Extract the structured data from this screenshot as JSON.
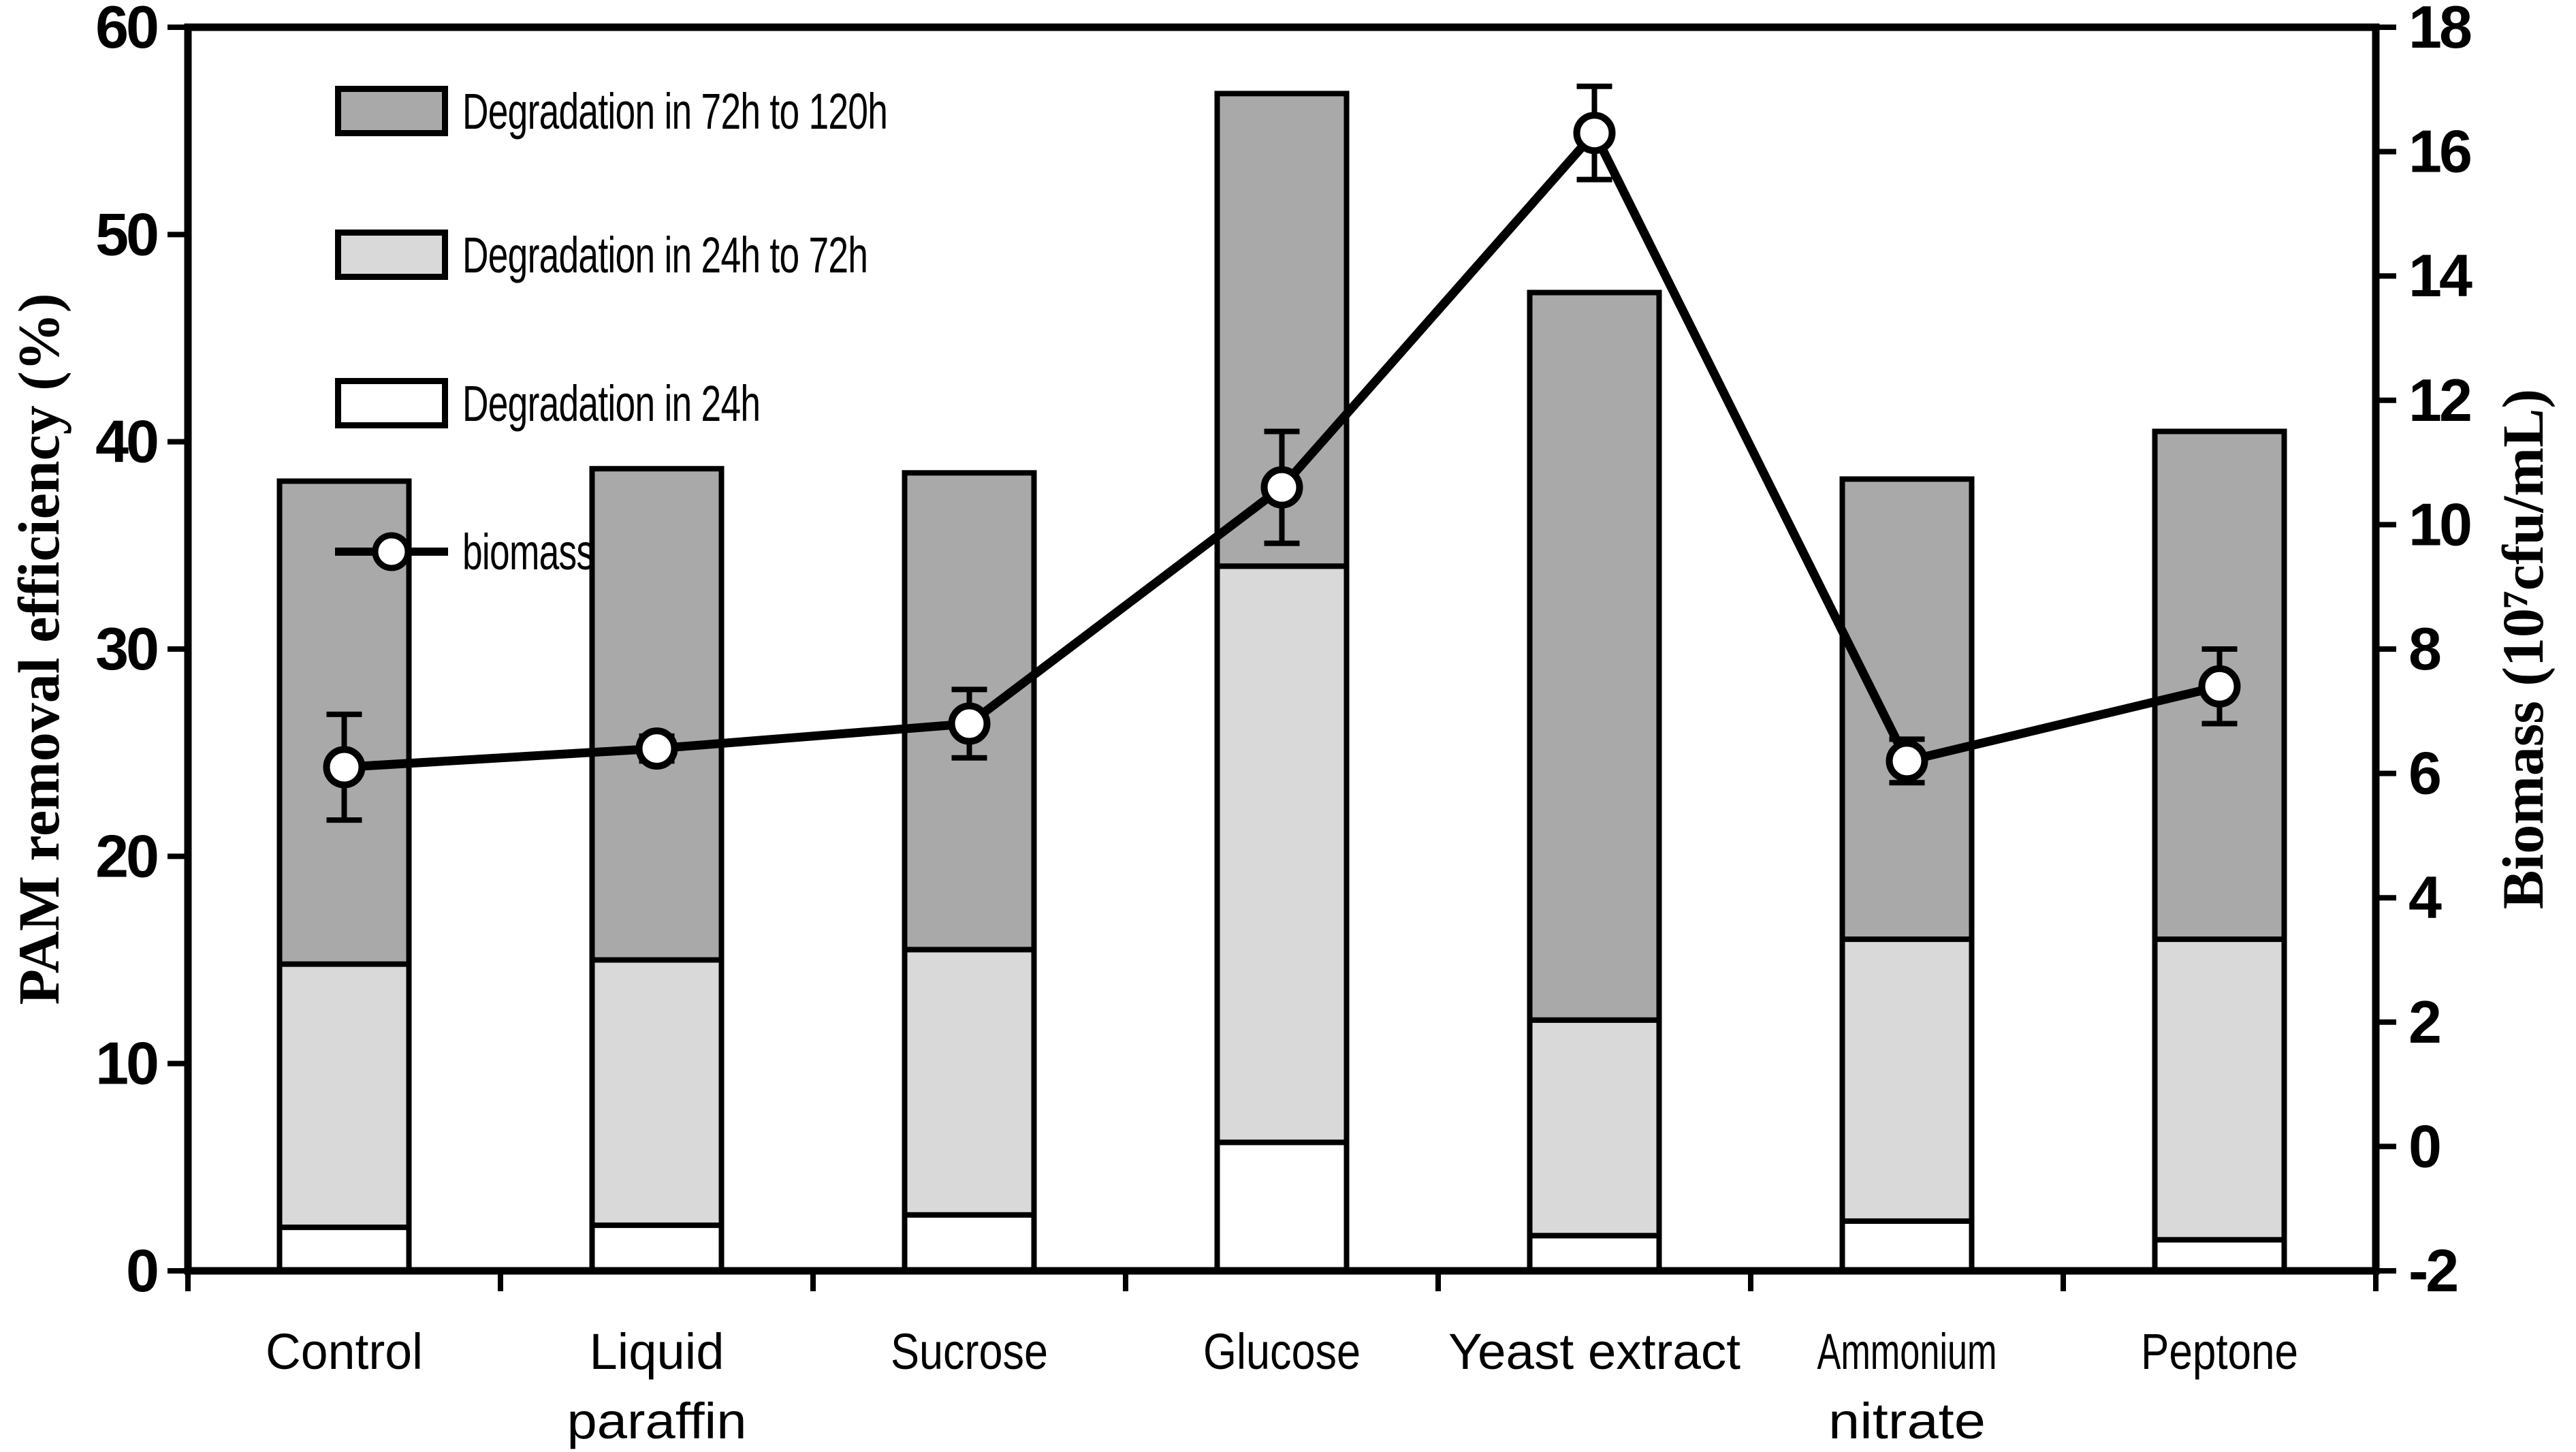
{
  "chart_data": {
    "type": "composite-stacked-bar-line",
    "categories": [
      "Control",
      "Liquid\nparaffin",
      "Sucrose",
      "Glucose",
      "Yeast extract",
      "Ammonium\nnitrate",
      "Peptone"
    ],
    "bar_series": [
      {
        "name": "Degradation in 24h",
        "color": "#ffffff",
        "values": [
          2.1,
          2.2,
          2.7,
          6.2,
          1.7,
          2.4,
          1.5
        ]
      },
      {
        "name": "Degradation in 24h to 72h",
        "color": "#d9d9d9",
        "values": [
          12.7,
          12.8,
          12.8,
          27.8,
          10.4,
          13.6,
          14.5
        ]
      },
      {
        "name": "Degradation in 72h to 120h",
        "color": "#a9a9a9",
        "values": [
          23.3,
          23.7,
          23.0,
          22.8,
          35.1,
          22.2,
          24.5
        ]
      }
    ],
    "bar_totals": [
      38.1,
      38.7,
      38.5,
      56.8,
      47.2,
      38.2,
      40.5
    ],
    "line_series": {
      "name": "biomass",
      "axis": "right",
      "values": [
        6.1,
        6.4,
        6.8,
        10.6,
        16.3,
        6.2,
        7.4
      ],
      "errors": [
        0.85,
        0.2,
        0.55,
        0.9,
        0.75,
        0.35,
        0.6
      ],
      "marker": "open-circle",
      "color": "#000000"
    },
    "left_axis": {
      "label": "PAM removal efficiency (%)",
      "min": 0,
      "max": 60,
      "step": 10
    },
    "right_axis": {
      "label": "Biomass (10⁷cfu/mL)",
      "min": -2,
      "max": 18,
      "step": 2
    },
    "legend": [
      {
        "label": "Degradation in 72h to 120h",
        "color": "#a9a9a9",
        "type": "box"
      },
      {
        "label": "Degradation in 24h to 72h",
        "color": "#d9d9d9",
        "type": "box"
      },
      {
        "label": "Degradation in 24h",
        "color": "#ffffff",
        "type": "box"
      },
      {
        "label": "biomass",
        "color": "#000000",
        "type": "line-marker"
      }
    ],
    "grid": false,
    "legend_position": "top-left-inside",
    "plot_border": "full-box",
    "colors": {
      "axis": "#000000",
      "background": "#ffffff"
    }
  }
}
